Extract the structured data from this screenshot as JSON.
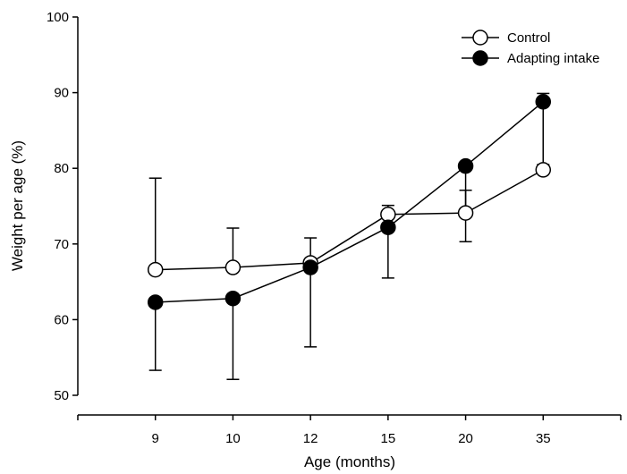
{
  "chart_data": {
    "type": "line",
    "title": "",
    "xlabel": "Age (months)",
    "ylabel": "Weight per age (%)",
    "categories": [
      "9",
      "10",
      "12",
      "15",
      "20",
      "35"
    ],
    "ylim": [
      50,
      100
    ],
    "yticks": [
      50,
      60,
      70,
      80,
      90,
      100
    ],
    "grid": false,
    "legend_position": "top-right",
    "series": [
      {
        "name": "Control",
        "marker": "open-circle",
        "values": [
          66.6,
          66.9,
          67.5,
          73.9,
          74.1,
          79.8
        ],
        "error_upper": [
          78.7,
          72.1,
          70.8,
          75.1,
          77.1,
          89.9
        ]
      },
      {
        "name": "Adapting intake",
        "marker": "filled-circle",
        "values": [
          62.3,
          62.8,
          66.9,
          72.2,
          80.3,
          88.8
        ],
        "error_lower": [
          53.3,
          52.1,
          56.4,
          65.5,
          70.3,
          80.5
        ]
      }
    ]
  },
  "colors": {
    "ink": "#000000",
    "open_fill": "#ffffff"
  }
}
